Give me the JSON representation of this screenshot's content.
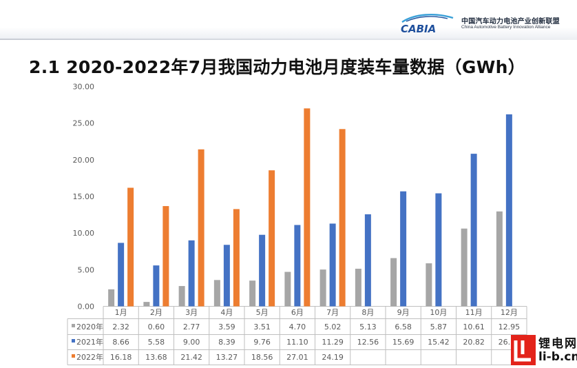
{
  "header": {
    "logo_text": "CABIA",
    "org_cn": "中国汽车动力电池产业创新联盟",
    "org_en": "China Automotive Battery Innovation Alliance"
  },
  "page_title": "2.1 2020-2022年7月我国动力电池月度装车量数据（GWh）",
  "watermark": {
    "cn": "锂电网",
    "url": "li-b.cn"
  },
  "colors": {
    "series_2020": "#a6a6a6",
    "series_2021": "#4472c4",
    "series_2022": "#ed7d31",
    "axis": "#bfbfbf",
    "text": "#595959"
  },
  "chart_data": {
    "type": "bar",
    "title": "",
    "xlabel": "",
    "ylabel": "",
    "ylim": [
      0,
      30
    ],
    "yticks": [
      "0.00",
      "5.00",
      "10.00",
      "15.00",
      "20.00",
      "25.00",
      "30.00"
    ],
    "categories": [
      "1月",
      "2月",
      "3月",
      "4月",
      "5月",
      "6月",
      "7月",
      "8月",
      "9月",
      "10月",
      "11月",
      "12月"
    ],
    "series": [
      {
        "name": "2020年",
        "values": [
          2.32,
          0.6,
          2.77,
          3.59,
          3.51,
          4.7,
          5.02,
          5.13,
          6.58,
          5.87,
          10.61,
          12.95
        ],
        "labels": [
          "2.32",
          "0.60",
          "2.77",
          "3.59",
          "3.51",
          "4.70",
          "5.02",
          "5.13",
          "6.58",
          "5.87",
          "10.61",
          "12.95"
        ]
      },
      {
        "name": "2021年",
        "values": [
          8.66,
          5.58,
          9.0,
          8.39,
          9.76,
          11.1,
          11.29,
          12.56,
          15.69,
          15.42,
          20.82,
          26.2
        ],
        "labels": [
          "8.66",
          "5.58",
          "9.00",
          "8.39",
          "9.76",
          "11.10",
          "11.29",
          "12.56",
          "15.69",
          "15.42",
          "20.82",
          "26.20"
        ]
      },
      {
        "name": "2022年",
        "values": [
          16.18,
          13.68,
          21.42,
          13.27,
          18.56,
          27.01,
          24.19,
          null,
          null,
          null,
          null,
          null
        ],
        "labels": [
          "16.18",
          "13.68",
          "21.42",
          "13.27",
          "18.56",
          "27.01",
          "24.19",
          "",
          "",
          "",
          "",
          ""
        ]
      }
    ],
    "grid": false,
    "legend": "data-table-below"
  }
}
